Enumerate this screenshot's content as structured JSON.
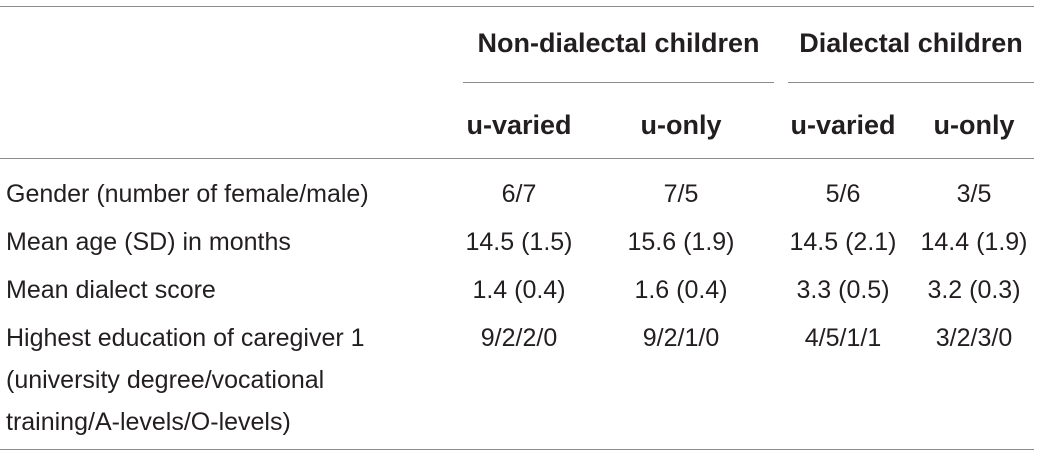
{
  "table": {
    "groups": [
      {
        "label": "Non-dialectal children"
      },
      {
        "label": "Dialectal children"
      }
    ],
    "subheaders": [
      "u-varied",
      "u-only",
      "u-varied",
      "u-only"
    ],
    "rows": [
      {
        "label_lines": [
          "Gender (number of female/male)"
        ],
        "values": [
          "6/7",
          "7/5",
          "5/6",
          "3/5"
        ]
      },
      {
        "label_lines": [
          "Mean age (SD) in months"
        ],
        "values": [
          "14.5 (1.5)",
          "15.6 (1.9)",
          "14.5 (2.1)",
          "14.4 (1.9)"
        ]
      },
      {
        "label_lines": [
          "Mean dialect score"
        ],
        "values": [
          "1.4 (0.4)",
          "1.6 (0.4)",
          "3.3 (0.5)",
          "3.2 (0.3)"
        ]
      },
      {
        "label_lines": [
          "Highest education of caregiver 1",
          "(university degree/vocational",
          "training/A-levels/O-levels)"
        ],
        "values": [
          "9/2/2/0",
          "9/2/1/0",
          "4/5/1/1",
          "3/2/3/0"
        ]
      }
    ]
  }
}
